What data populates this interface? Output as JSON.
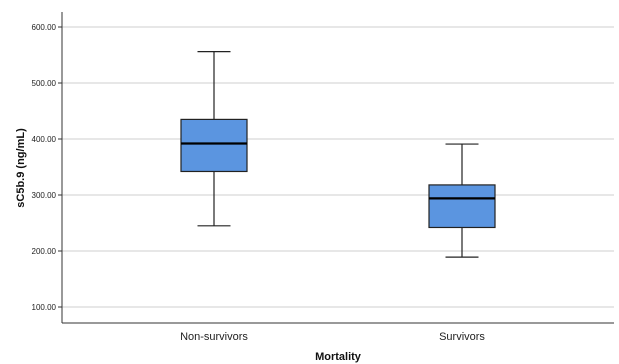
{
  "chart_data": {
    "type": "boxplot",
    "xlabel": "Mortality",
    "ylabel": "sC5b.9 (ng/mL)",
    "ylim": [
      75,
      630
    ],
    "yticks": [
      100,
      200,
      300,
      400,
      500,
      600
    ],
    "ytick_labels": [
      "100.00",
      "200.00",
      "300.00",
      "400.00",
      "500.00",
      "600.00"
    ],
    "grid": "horizontal",
    "box_color": "#5b95e0",
    "categories": [
      "Non-survivors",
      "Survivors"
    ],
    "boxes": [
      {
        "category": "Non-survivors",
        "min": 245,
        "q1": 342,
        "median": 392,
        "q3": 435,
        "max": 556
      },
      {
        "category": "Survivors",
        "min": 189,
        "q1": 242,
        "median": 294,
        "q3": 318,
        "max": 391
      }
    ]
  }
}
